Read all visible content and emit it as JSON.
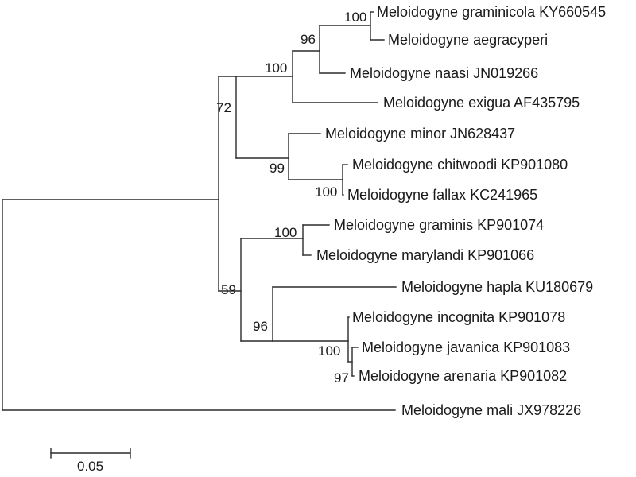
{
  "tree": {
    "taxa": [
      "Meloidogyne graminicola KY660545",
      "Meloidogyne aegracyperi",
      "Meloidogyne naasi JN019266",
      "Meloidogyne exigua AF435795",
      "Meloidogyne minor JN628437",
      "Meloidogyne chitwoodi KP901080",
      "Meloidogyne fallax KC241965",
      "Meloidogyne graminis KP901074",
      "Meloidogyne marylandi KP901066",
      "Meloidogyne hapla KU180679",
      "Meloidogyne incognita KP901078",
      "Meloidogyne javanica KP901083",
      "Meloidogyne arenaria KP901082",
      "Meloidogyne mali JX978226"
    ],
    "support_values": [
      "100",
      "96",
      "100",
      "72",
      "99",
      "100",
      "100",
      "59",
      "96",
      "100",
      "97"
    ],
    "scale_bar": {
      "label": "0.05"
    }
  }
}
